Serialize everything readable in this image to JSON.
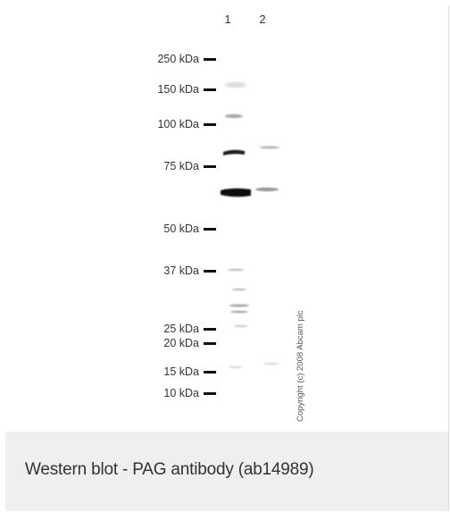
{
  "blot": {
    "lanes": [
      "1",
      "2"
    ],
    "markers": [
      "250 kDa",
      "150 kDa",
      "100 kDa",
      "75 kDa",
      "50 kDa",
      "37 kDa",
      "25 kDa",
      "20 kDa",
      "15 kDa",
      "10 kDa"
    ],
    "watermark": "Copyright (c) 2008 Abcam plc"
  },
  "caption": "Western blot - PAG antibody (ab14989)"
}
